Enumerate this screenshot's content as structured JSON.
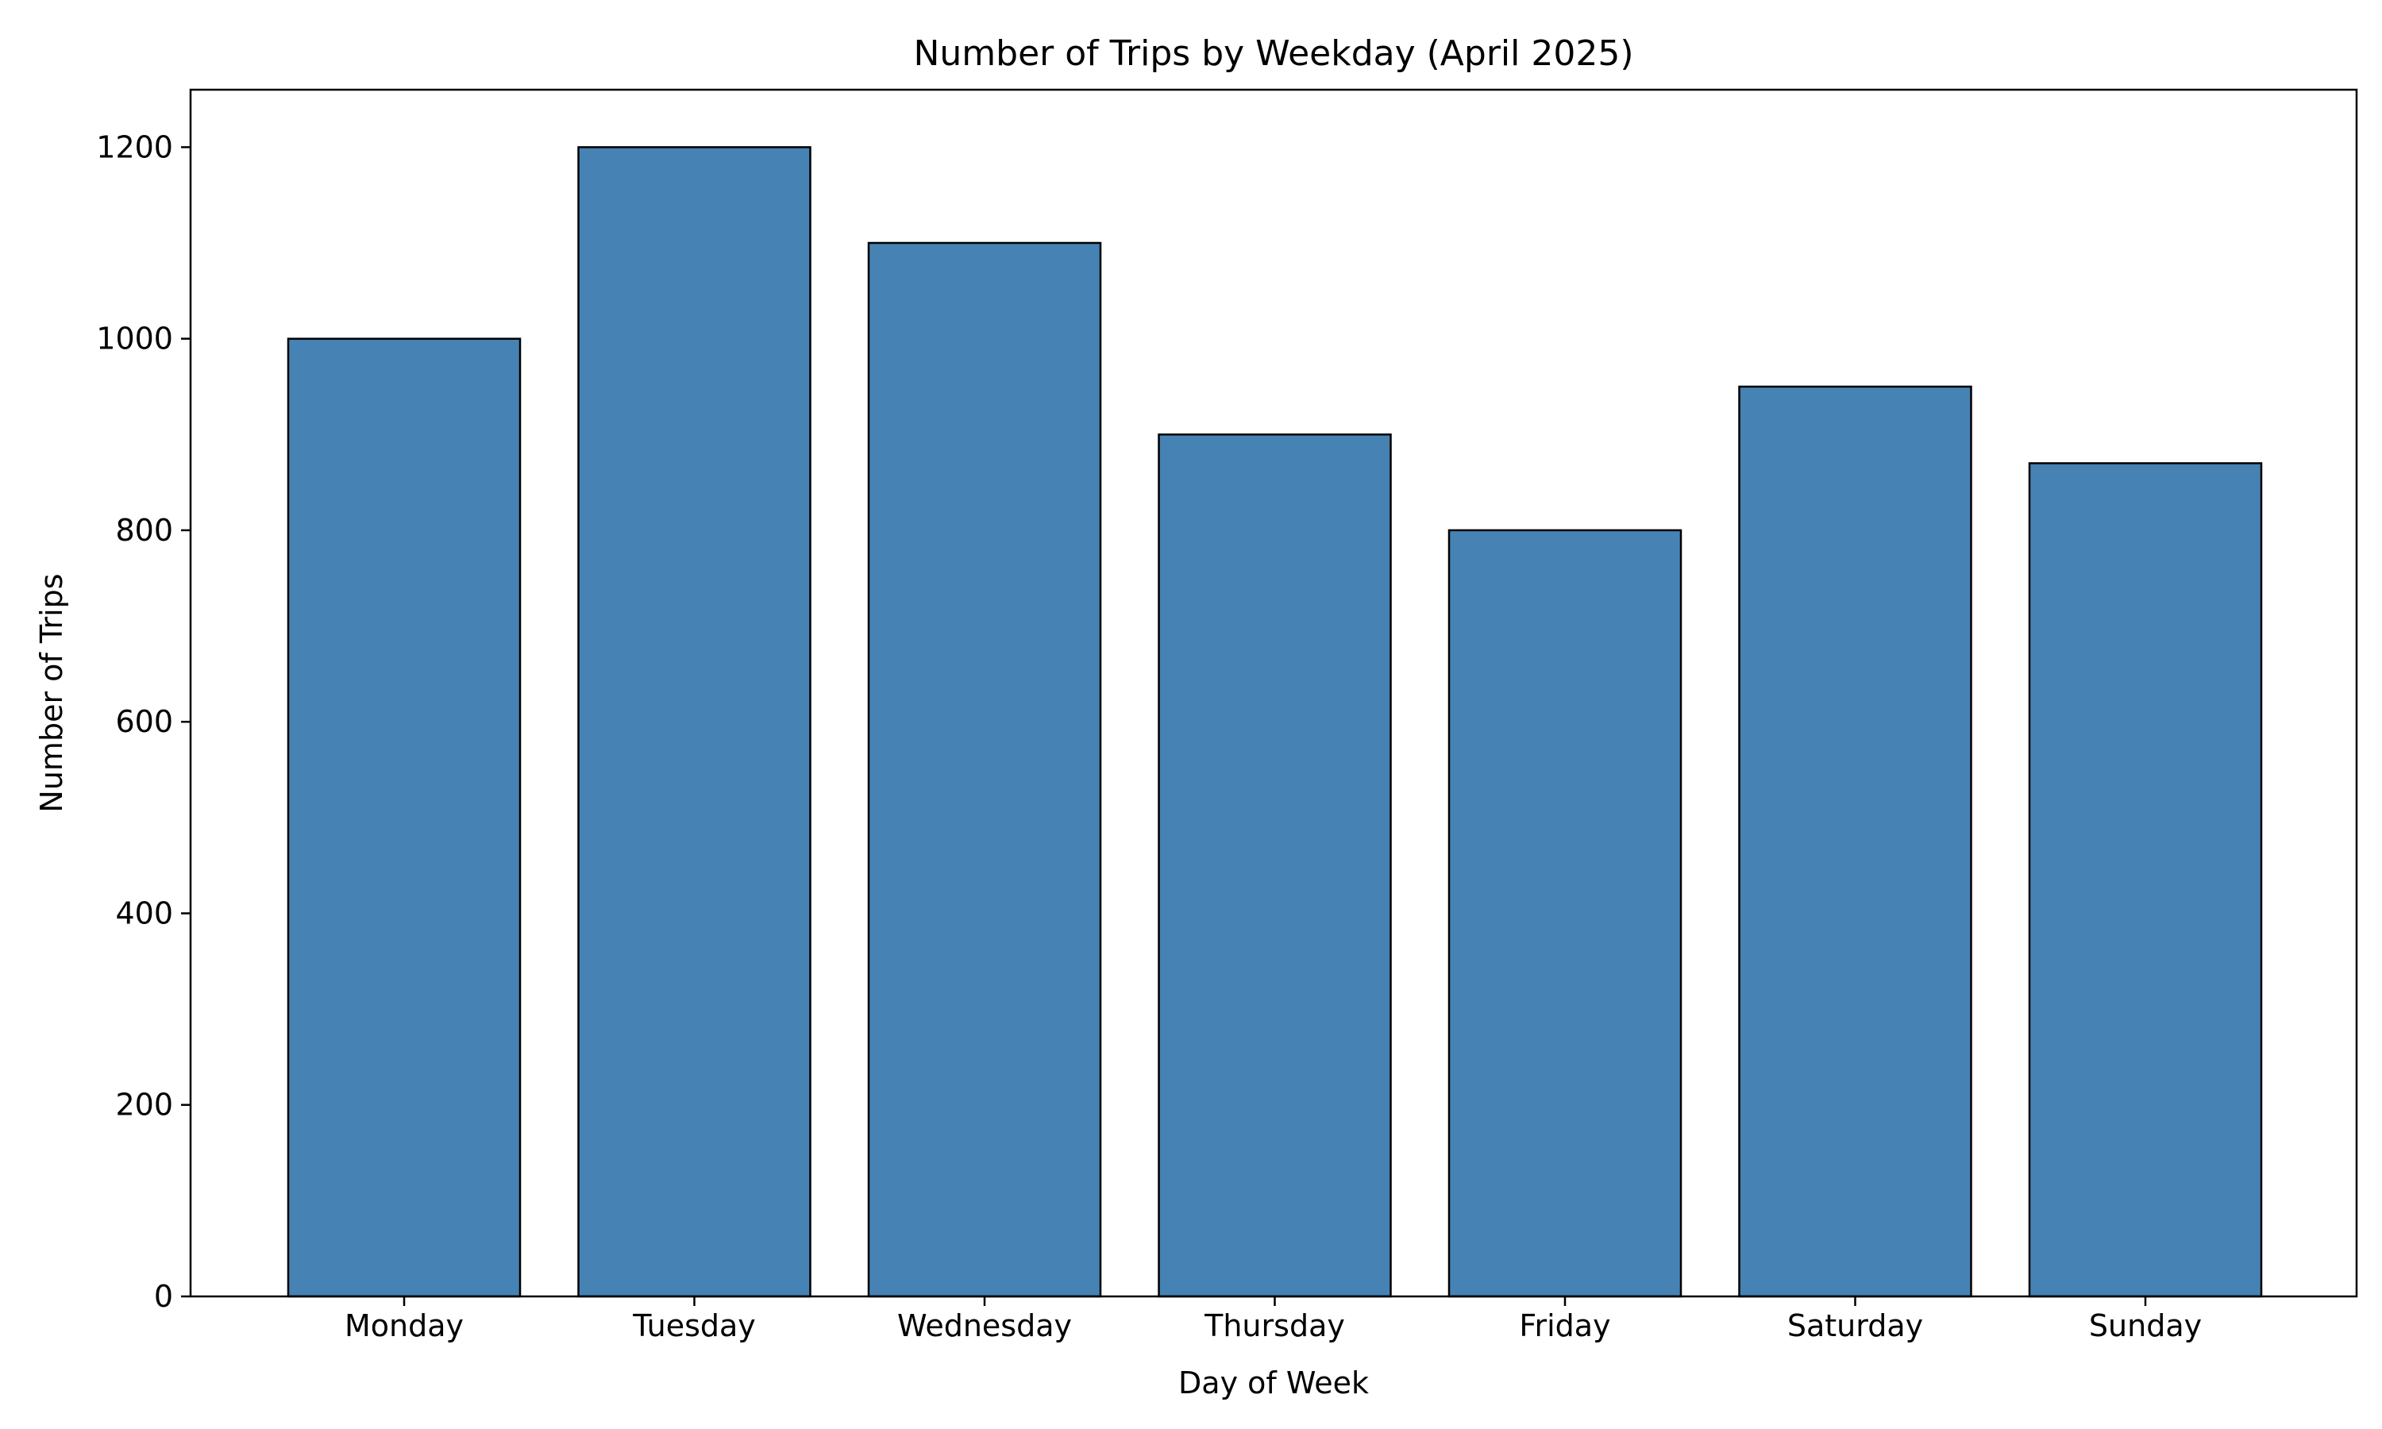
{
  "chart_data": {
    "type": "bar",
    "title": "Number of Trips by Weekday (April 2025)",
    "xlabel": "Day of Week",
    "ylabel": "Number of Trips",
    "categories": [
      "Monday",
      "Tuesday",
      "Wednesday",
      "Thursday",
      "Friday",
      "Saturday",
      "Sunday"
    ],
    "values": [
      1000,
      1200,
      1100,
      900,
      800,
      950,
      870
    ],
    "ylim": [
      0,
      1260
    ],
    "yticks": [
      0,
      200,
      400,
      600,
      800,
      1000,
      1200
    ],
    "grid": false,
    "legend": "none",
    "colors": {
      "bar_fill": "#4682b4",
      "bar_edge": "#000000",
      "axes": "#000000"
    }
  }
}
